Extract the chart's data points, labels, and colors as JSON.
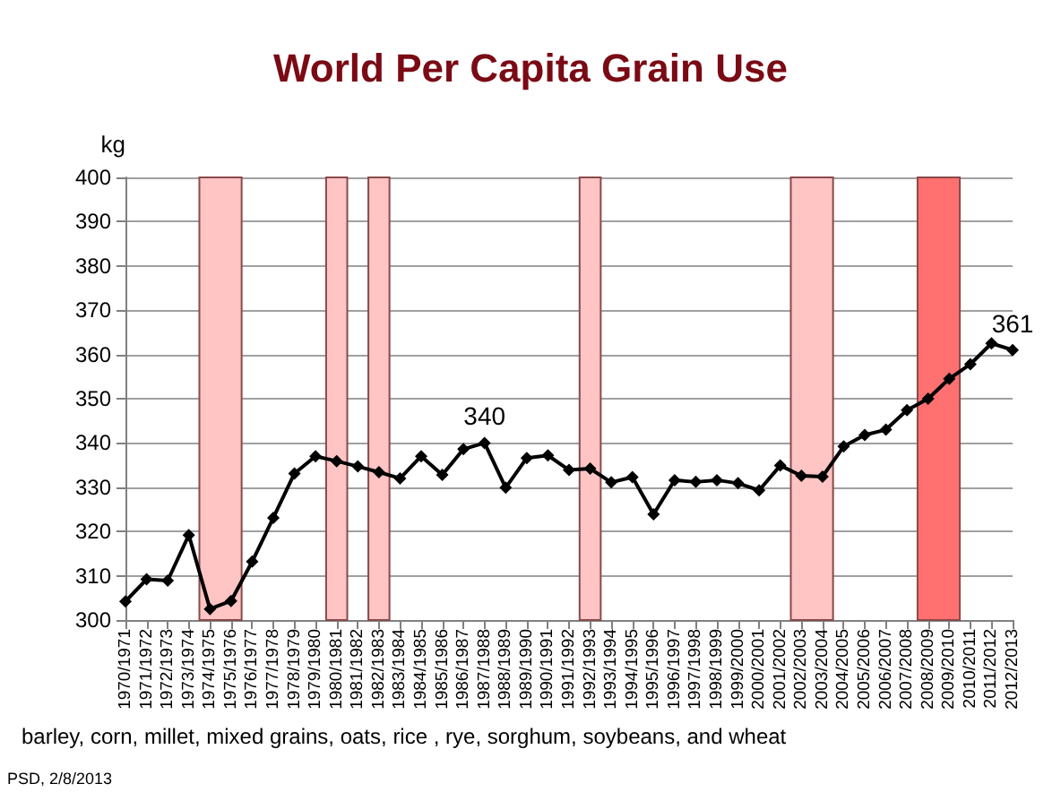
{
  "chart_data": {
    "type": "line",
    "title": "World Per Capita Grain Use",
    "ylabel": "kg",
    "categories": [
      "1970/1971",
      "1971/1972",
      "1972/1973",
      "1973/1974",
      "1974/1975",
      "1975/1976",
      "1976/1977",
      "1977/1978",
      "1978/1979",
      "1979/1980",
      "1980/1981",
      "1981/1982",
      "1982/1983",
      "1983/1984",
      "1984/1985",
      "1985/1986",
      "1986/1987",
      "1987/1988",
      "1988/1989",
      "1989/1990",
      "1990/1991",
      "1991/1992",
      "1992/1993",
      "1993/1994",
      "1994/1995",
      "1995/1996",
      "1996/1997",
      "1997/1998",
      "1998/1999",
      "1999/2000",
      "2000/2001",
      "2001/2002",
      "2002/2003",
      "2003/2004",
      "2004/2005",
      "2005/2006",
      "2006/2007",
      "2007/2008",
      "2008/2009",
      "2009/2010",
      "2010/2011",
      "2011/2012",
      "2012/2013"
    ],
    "series": [
      {
        "color": "#000000",
        "values": [
          304.2,
          309.2,
          308.9,
          319.2,
          302.5,
          304.3,
          313.2,
          323.1,
          333.1,
          337.0,
          335.9,
          334.7,
          333.4,
          332.0,
          337.0,
          332.8,
          338.6,
          340,
          329.9,
          336.6,
          337.2,
          333.9,
          334.2,
          331.1,
          332.3,
          323.9,
          331.6,
          331.2,
          331.6,
          330.9,
          329.3,
          334.9,
          332.6,
          332.4,
          339.2,
          341.8,
          343.0,
          347.4,
          350.0,
          354.5,
          357.8,
          362.5,
          361
        ]
      }
    ],
    "ylim": [
      300,
      400
    ],
    "yticks": [
      300,
      310,
      320,
      330,
      340,
      350,
      360,
      370,
      380,
      390,
      400
    ],
    "grid": "y",
    "marker": "diamond",
    "line_style": "solid",
    "bands": [
      {
        "axis": "x",
        "from": "1974/1975",
        "to": "1975/1976",
        "color": "#ffc4c4"
      },
      {
        "axis": "x",
        "from": "1980/1981",
        "to": "1980/1981",
        "color": "#ffc4c4"
      },
      {
        "axis": "x",
        "from": "1982/1983",
        "to": "1982/1983",
        "color": "#ffc4c4"
      },
      {
        "axis": "x",
        "from": "1992/1993",
        "to": "1992/1993",
        "color": "#ffc4c4"
      },
      {
        "axis": "x",
        "from": "2002/2003",
        "to": "2003/2004",
        "color": "#ffc4c4"
      },
      {
        "axis": "x",
        "from": "2008/2009",
        "to": "2009/2010",
        "color": "#ff7070"
      }
    ],
    "annotations": [
      {
        "text": "340",
        "x": "1987/1988",
        "y": 340
      },
      {
        "text": "361",
        "x": "2012/2013",
        "y": 361
      },
      "barley, corn, millet, mixed grains, oats, rice , rye, sorghum, soybeans, and wheat",
      "PSD, 2/8/2013"
    ]
  }
}
